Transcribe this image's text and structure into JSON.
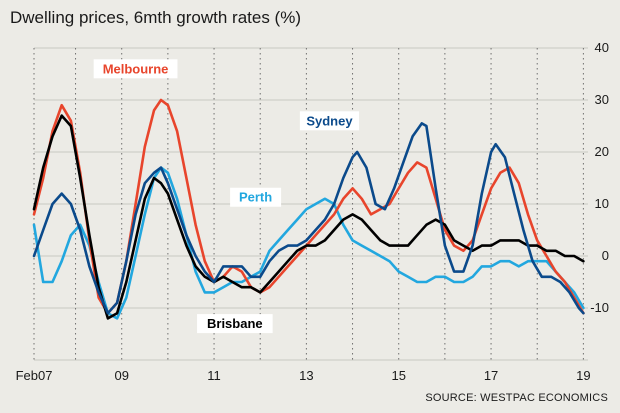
{
  "chart_data": {
    "type": "line",
    "title": "Dwelling prices, 6mth growth rates (%)",
    "source": "SOURCE: WESTPAC ECONOMICS",
    "xlabel": "",
    "ylabel": "",
    "xlim": [
      2007.1,
      2019.1
    ],
    "ylim": [
      -20,
      40
    ],
    "x_ticks": [
      {
        "value": 2007.1,
        "label": "Feb07"
      },
      {
        "value": 2009,
        "label": "09"
      },
      {
        "value": 2011,
        "label": "11"
      },
      {
        "value": 2013,
        "label": "13"
      },
      {
        "value": 2015,
        "label": "15"
      },
      {
        "value": 2017,
        "label": "17"
      },
      {
        "value": 2019,
        "label": "19"
      }
    ],
    "y_ticks": [
      40,
      30,
      20,
      10,
      0,
      -10
    ],
    "grid": "dotted vertical, horizontal at 10-point intervals",
    "series": [
      {
        "name": "Melbourne",
        "color": "#e8452c",
        "points": [
          [
            2007.1,
            8
          ],
          [
            2007.3,
            15
          ],
          [
            2007.5,
            24
          ],
          [
            2007.7,
            29
          ],
          [
            2007.9,
            26
          ],
          [
            2008.1,
            16
          ],
          [
            2008.3,
            3
          ],
          [
            2008.5,
            -8
          ],
          [
            2008.7,
            -11
          ],
          [
            2008.9,
            -9
          ],
          [
            2009.1,
            -1
          ],
          [
            2009.3,
            10
          ],
          [
            2009.5,
            21
          ],
          [
            2009.7,
            28
          ],
          [
            2009.85,
            30
          ],
          [
            2010.0,
            29
          ],
          [
            2010.2,
            24
          ],
          [
            2010.4,
            15
          ],
          [
            2010.6,
            6
          ],
          [
            2010.8,
            -1
          ],
          [
            2011.0,
            -5
          ],
          [
            2011.2,
            -4
          ],
          [
            2011.4,
            -2
          ],
          [
            2011.6,
            -3
          ],
          [
            2011.8,
            -6
          ],
          [
            2012.0,
            -7
          ],
          [
            2012.2,
            -6
          ],
          [
            2012.4,
            -4
          ],
          [
            2012.6,
            -2
          ],
          [
            2012.8,
            0
          ],
          [
            2013.0,
            2
          ],
          [
            2013.2,
            4
          ],
          [
            2013.4,
            6
          ],
          [
            2013.6,
            8
          ],
          [
            2013.8,
            11
          ],
          [
            2014.0,
            13
          ],
          [
            2014.2,
            11
          ],
          [
            2014.4,
            8
          ],
          [
            2014.6,
            9
          ],
          [
            2014.8,
            10
          ],
          [
            2015.0,
            13
          ],
          [
            2015.2,
            16
          ],
          [
            2015.4,
            18
          ],
          [
            2015.6,
            17
          ],
          [
            2015.8,
            11
          ],
          [
            2016.0,
            5
          ],
          [
            2016.2,
            2
          ],
          [
            2016.4,
            1
          ],
          [
            2016.6,
            3
          ],
          [
            2016.8,
            8
          ],
          [
            2017.0,
            13
          ],
          [
            2017.2,
            16
          ],
          [
            2017.4,
            17
          ],
          [
            2017.6,
            14
          ],
          [
            2017.8,
            8
          ],
          [
            2018.0,
            3
          ],
          [
            2018.2,
            0
          ],
          [
            2018.4,
            -3
          ],
          [
            2018.6,
            -5
          ],
          [
            2018.8,
            -8
          ],
          [
            2019.0,
            -11
          ]
        ]
      },
      {
        "name": "Sydney",
        "color": "#0b4a8b",
        "points": [
          [
            2007.1,
            0
          ],
          [
            2007.3,
            5
          ],
          [
            2007.5,
            10
          ],
          [
            2007.7,
            12
          ],
          [
            2007.9,
            10
          ],
          [
            2008.1,
            5
          ],
          [
            2008.3,
            -2
          ],
          [
            2008.5,
            -7
          ],
          [
            2008.7,
            -11
          ],
          [
            2008.9,
            -9
          ],
          [
            2009.1,
            -1
          ],
          [
            2009.3,
            8
          ],
          [
            2009.5,
            14
          ],
          [
            2009.7,
            16
          ],
          [
            2009.85,
            17
          ],
          [
            2010.0,
            14
          ],
          [
            2010.2,
            9
          ],
          [
            2010.4,
            4
          ],
          [
            2010.6,
            0
          ],
          [
            2010.8,
            -3
          ],
          [
            2011.0,
            -5
          ],
          [
            2011.2,
            -2
          ],
          [
            2011.4,
            -2
          ],
          [
            2011.6,
            -2
          ],
          [
            2011.8,
            -4
          ],
          [
            2012.0,
            -4
          ],
          [
            2012.2,
            -1
          ],
          [
            2012.4,
            1
          ],
          [
            2012.6,
            2
          ],
          [
            2012.8,
            2
          ],
          [
            2013.0,
            3
          ],
          [
            2013.2,
            5
          ],
          [
            2013.4,
            7
          ],
          [
            2013.6,
            10
          ],
          [
            2013.8,
            15
          ],
          [
            2014.0,
            19
          ],
          [
            2014.1,
            20
          ],
          [
            2014.3,
            17
          ],
          [
            2014.5,
            10
          ],
          [
            2014.7,
            9
          ],
          [
            2014.9,
            13
          ],
          [
            2015.1,
            18
          ],
          [
            2015.3,
            23
          ],
          [
            2015.5,
            25.5
          ],
          [
            2015.6,
            25
          ],
          [
            2015.8,
            13
          ],
          [
            2016.0,
            2
          ],
          [
            2016.2,
            -3
          ],
          [
            2016.4,
            -3
          ],
          [
            2016.6,
            2
          ],
          [
            2016.8,
            12
          ],
          [
            2017.0,
            20
          ],
          [
            2017.1,
            21.5
          ],
          [
            2017.3,
            19
          ],
          [
            2017.5,
            12
          ],
          [
            2017.7,
            5
          ],
          [
            2017.9,
            -1
          ],
          [
            2018.1,
            -4
          ],
          [
            2018.3,
            -4
          ],
          [
            2018.5,
            -5
          ],
          [
            2018.7,
            -7
          ],
          [
            2018.9,
            -10
          ],
          [
            2019.0,
            -11
          ]
        ]
      },
      {
        "name": "Perth",
        "color": "#22a7df",
        "points": [
          [
            2007.1,
            6
          ],
          [
            2007.3,
            -5
          ],
          [
            2007.5,
            -5
          ],
          [
            2007.7,
            -1
          ],
          [
            2007.9,
            4
          ],
          [
            2008.1,
            6
          ],
          [
            2008.3,
            2
          ],
          [
            2008.5,
            -5
          ],
          [
            2008.7,
            -11
          ],
          [
            2008.9,
            -12
          ],
          [
            2009.1,
            -8
          ],
          [
            2009.3,
            0
          ],
          [
            2009.5,
            8
          ],
          [
            2009.7,
            15
          ],
          [
            2009.85,
            17
          ],
          [
            2010.0,
            16
          ],
          [
            2010.2,
            11
          ],
          [
            2010.4,
            4
          ],
          [
            2010.6,
            -3
          ],
          [
            2010.8,
            -7
          ],
          [
            2011.0,
            -7
          ],
          [
            2011.2,
            -6
          ],
          [
            2011.4,
            -5
          ],
          [
            2011.6,
            -5
          ],
          [
            2011.8,
            -4
          ],
          [
            2012.0,
            -3
          ],
          [
            2012.2,
            1
          ],
          [
            2012.4,
            3
          ],
          [
            2012.6,
            5
          ],
          [
            2012.8,
            7
          ],
          [
            2013.0,
            9
          ],
          [
            2013.2,
            10
          ],
          [
            2013.4,
            11
          ],
          [
            2013.6,
            10
          ],
          [
            2013.8,
            6
          ],
          [
            2014.0,
            3
          ],
          [
            2014.2,
            2
          ],
          [
            2014.4,
            1
          ],
          [
            2014.6,
            0
          ],
          [
            2014.8,
            -1
          ],
          [
            2015.0,
            -3
          ],
          [
            2015.2,
            -4
          ],
          [
            2015.4,
            -5
          ],
          [
            2015.6,
            -5
          ],
          [
            2015.8,
            -4
          ],
          [
            2016.0,
            -4
          ],
          [
            2016.2,
            -5
          ],
          [
            2016.4,
            -5
          ],
          [
            2016.6,
            -4
          ],
          [
            2016.8,
            -2
          ],
          [
            2017.0,
            -2
          ],
          [
            2017.2,
            -1
          ],
          [
            2017.4,
            -1
          ],
          [
            2017.6,
            -2
          ],
          [
            2017.8,
            -1
          ],
          [
            2018.0,
            -1
          ],
          [
            2018.2,
            -1
          ],
          [
            2018.4,
            -3
          ],
          [
            2018.6,
            -5
          ],
          [
            2018.8,
            -7
          ],
          [
            2019.0,
            -10
          ]
        ]
      },
      {
        "name": "Brisbane",
        "color": "#000000",
        "points": [
          [
            2007.1,
            9
          ],
          [
            2007.3,
            17
          ],
          [
            2007.5,
            23
          ],
          [
            2007.7,
            27
          ],
          [
            2007.9,
            25
          ],
          [
            2008.1,
            15
          ],
          [
            2008.3,
            4
          ],
          [
            2008.5,
            -6
          ],
          [
            2008.7,
            -12
          ],
          [
            2008.9,
            -11
          ],
          [
            2009.1,
            -5
          ],
          [
            2009.3,
            3
          ],
          [
            2009.5,
            11
          ],
          [
            2009.7,
            15
          ],
          [
            2009.85,
            14
          ],
          [
            2010.0,
            12
          ],
          [
            2010.2,
            7
          ],
          [
            2010.4,
            2
          ],
          [
            2010.6,
            -2
          ],
          [
            2010.8,
            -4
          ],
          [
            2011.0,
            -5
          ],
          [
            2011.2,
            -4
          ],
          [
            2011.4,
            -5
          ],
          [
            2011.6,
            -6
          ],
          [
            2011.8,
            -6
          ],
          [
            2012.0,
            -7
          ],
          [
            2012.2,
            -5
          ],
          [
            2012.4,
            -3
          ],
          [
            2012.6,
            -1
          ],
          [
            2012.8,
            1
          ],
          [
            2013.0,
            2
          ],
          [
            2013.2,
            2
          ],
          [
            2013.4,
            3
          ],
          [
            2013.6,
            5
          ],
          [
            2013.8,
            7
          ],
          [
            2014.0,
            8
          ],
          [
            2014.2,
            7
          ],
          [
            2014.4,
            5
          ],
          [
            2014.6,
            3
          ],
          [
            2014.8,
            2
          ],
          [
            2015.0,
            2
          ],
          [
            2015.2,
            2
          ],
          [
            2015.4,
            4
          ],
          [
            2015.6,
            6
          ],
          [
            2015.8,
            7
          ],
          [
            2016.0,
            6
          ],
          [
            2016.2,
            3
          ],
          [
            2016.4,
            2
          ],
          [
            2016.6,
            1
          ],
          [
            2016.8,
            2
          ],
          [
            2017.0,
            2
          ],
          [
            2017.2,
            3
          ],
          [
            2017.4,
            3
          ],
          [
            2017.6,
            3
          ],
          [
            2017.8,
            2
          ],
          [
            2018.0,
            2
          ],
          [
            2018.2,
            1
          ],
          [
            2018.4,
            1
          ],
          [
            2018.6,
            0
          ],
          [
            2018.8,
            0
          ],
          [
            2019.0,
            -1
          ]
        ]
      }
    ],
    "labels": [
      {
        "series": "Melbourne",
        "text": "Melbourne",
        "x": 2009.3,
        "y": 36,
        "boxed": true
      },
      {
        "series": "Sydney",
        "text": "Sydney",
        "x": 2013.5,
        "y": 26,
        "boxed": true
      },
      {
        "series": "Perth",
        "text": "Perth",
        "x": 2011.9,
        "y": 11.3,
        "boxed": true
      },
      {
        "series": "Brisbane",
        "text": "Brisbane",
        "x": 2011.45,
        "y": -13,
        "boxed": true
      }
    ]
  }
}
